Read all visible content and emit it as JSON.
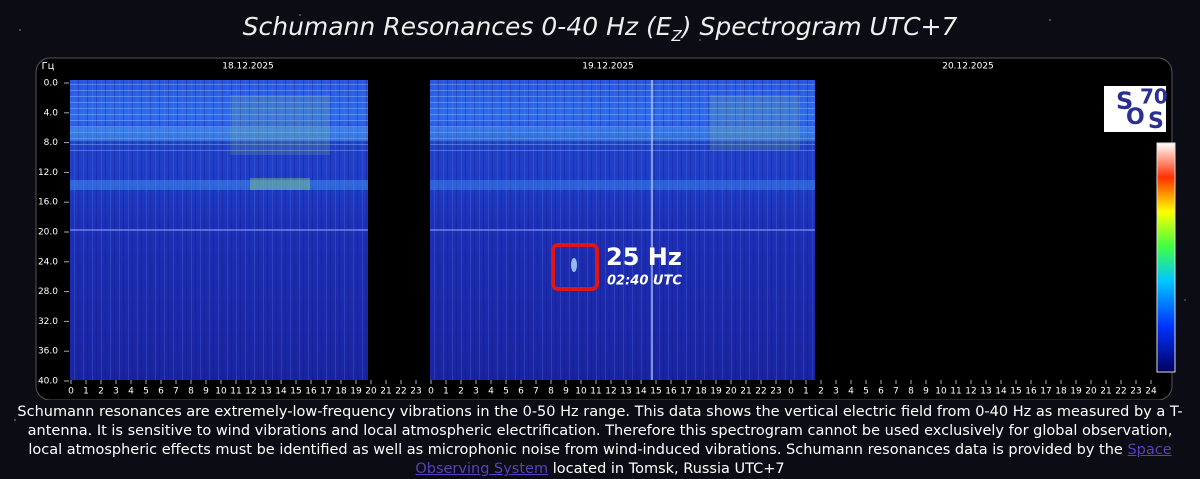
{
  "header": {
    "title_main": "Schumann Resonances 0-40 Hz (E",
    "title_sub": "Z",
    "title_end": ") Spectrogram UTC+7"
  },
  "spectrogram": {
    "y_unit": "Гц",
    "y_labels": [
      "0.0",
      "4.0",
      "8.0",
      "12.0",
      "16.0",
      "20.0",
      "24.0",
      "28.0",
      "32.0",
      "36.0",
      "40.0"
    ],
    "dates": [
      "18.12.2025",
      "19.12.2025",
      "20.12.2025"
    ],
    "x_labels": [
      "0",
      "1",
      "2",
      "3",
      "4",
      "5",
      "6",
      "7",
      "8",
      "9",
      "10",
      "11",
      "12",
      "13",
      "14",
      "15",
      "16",
      "17",
      "18",
      "19",
      "20",
      "21",
      "22",
      "23",
      "0",
      "1",
      "2",
      "3",
      "4",
      "5",
      "6",
      "7",
      "8",
      "9",
      "10",
      "11",
      "12",
      "13",
      "14",
      "15",
      "16",
      "17",
      "18",
      "19",
      "20",
      "21",
      "22",
      "23",
      "0",
      "1",
      "2",
      "3",
      "4",
      "5",
      "6",
      "7",
      "8",
      "9",
      "10",
      "11",
      "12",
      "13",
      "14",
      "15",
      "16",
      "17",
      "18",
      "19",
      "20",
      "21",
      "22",
      "23",
      "24"
    ],
    "annotation": {
      "frequency": "25 Hz",
      "time": "02:40 UTC"
    }
  },
  "logo": {
    "letters": [
      "S",
      "70",
      "O",
      "S"
    ]
  },
  "description": {
    "text_before": "Schumann resonances are extremely-low-frequency vibrations in the 0-50 Hz range. This data shows the vertical electric field from 0-40 Hz as measured by a T-antenna. It is sensitive to wind vibrations and local atmospheric electrification. Therefore this spectrogram cannot be used exclusively for global observation, local atmospheric effects must be identified as well as microphonic noise from wind-induced vibrations. Schumann resonances data is provided by the ",
    "link": "Space Observing System",
    "text_after": " located in Tomsk, Russia UTC+7"
  }
}
